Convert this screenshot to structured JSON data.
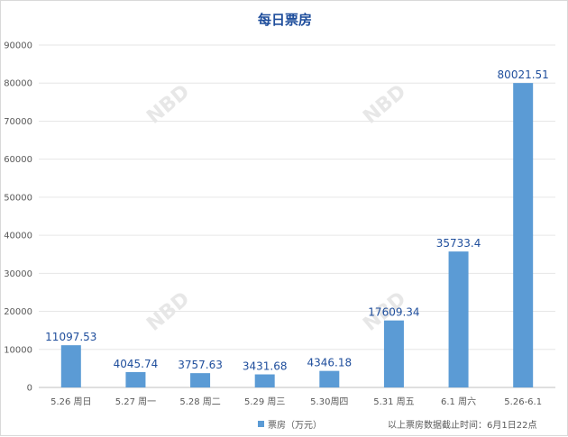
{
  "chart_data": {
    "type": "bar",
    "title": "每日票房",
    "categories": [
      "5.26 周日",
      "5.27 周一",
      "5.28 周二",
      "5.29 周三",
      "5.30周四",
      "5.31 周五",
      "6.1 周六",
      "5.26-6.1"
    ],
    "series": [
      {
        "name": "票房（万元）",
        "values": [
          11097.53,
          4045.74,
          3757.63,
          3431.68,
          4346.18,
          17609.34,
          35733.4,
          80021.51
        ],
        "labels": [
          "11097.53",
          "4045.74",
          "3757.63",
          "3431.68",
          "4346.18",
          "17609.34",
          "35733.4",
          "80021.51"
        ]
      }
    ],
    "ylim": [
      0,
      90000
    ],
    "yticks": [
      0,
      10000,
      20000,
      30000,
      40000,
      50000,
      60000,
      70000,
      80000,
      90000
    ],
    "grid": true,
    "legend_position": "bottom",
    "note": "以上票房数据截止时间：6月1日22点",
    "watermark": "NBD",
    "bar_color": "#5b9bd5",
    "label_color": "#1f4e9c",
    "title_color": "#1f4e9c"
  }
}
